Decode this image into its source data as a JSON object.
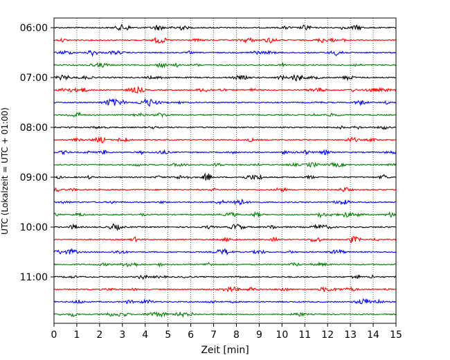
{
  "chart_data": {
    "type": "line",
    "title": "",
    "xlabel": "Zeit  [min]",
    "ylabel": "UTC (Lokalzeit = UTC + 01:00)",
    "xlim": [
      0,
      15
    ],
    "x_ticks": [
      0,
      1,
      2,
      3,
      4,
      5,
      6,
      7,
      8,
      9,
      10,
      11,
      12,
      13,
      14,
      15
    ],
    "x_tick_labels": [
      "0",
      "1",
      "2",
      "3",
      "4",
      "5",
      "6",
      "7",
      "8",
      "9",
      "10",
      "11",
      "12",
      "13",
      "14",
      "15"
    ],
    "y_tick_labels": [
      "06:00",
      "07:00",
      "08:00",
      "09:00",
      "10:00",
      "11:00"
    ],
    "trace_start_times": [
      "06:00",
      "06:15",
      "06:30",
      "06:45",
      "07:00",
      "07:15",
      "07:30",
      "07:45",
      "08:00",
      "08:15",
      "08:30",
      "08:45",
      "09:00",
      "09:15",
      "09:30",
      "09:45",
      "10:00",
      "10:15",
      "10:30",
      "10:45",
      "11:00",
      "11:15",
      "11:30",
      "11:45"
    ],
    "trace_color_cycle": [
      "#000000",
      "#ff0000",
      "#0000ff",
      "#008000"
    ],
    "grid": "vertical dotted at every minute",
    "legend": "none"
  }
}
